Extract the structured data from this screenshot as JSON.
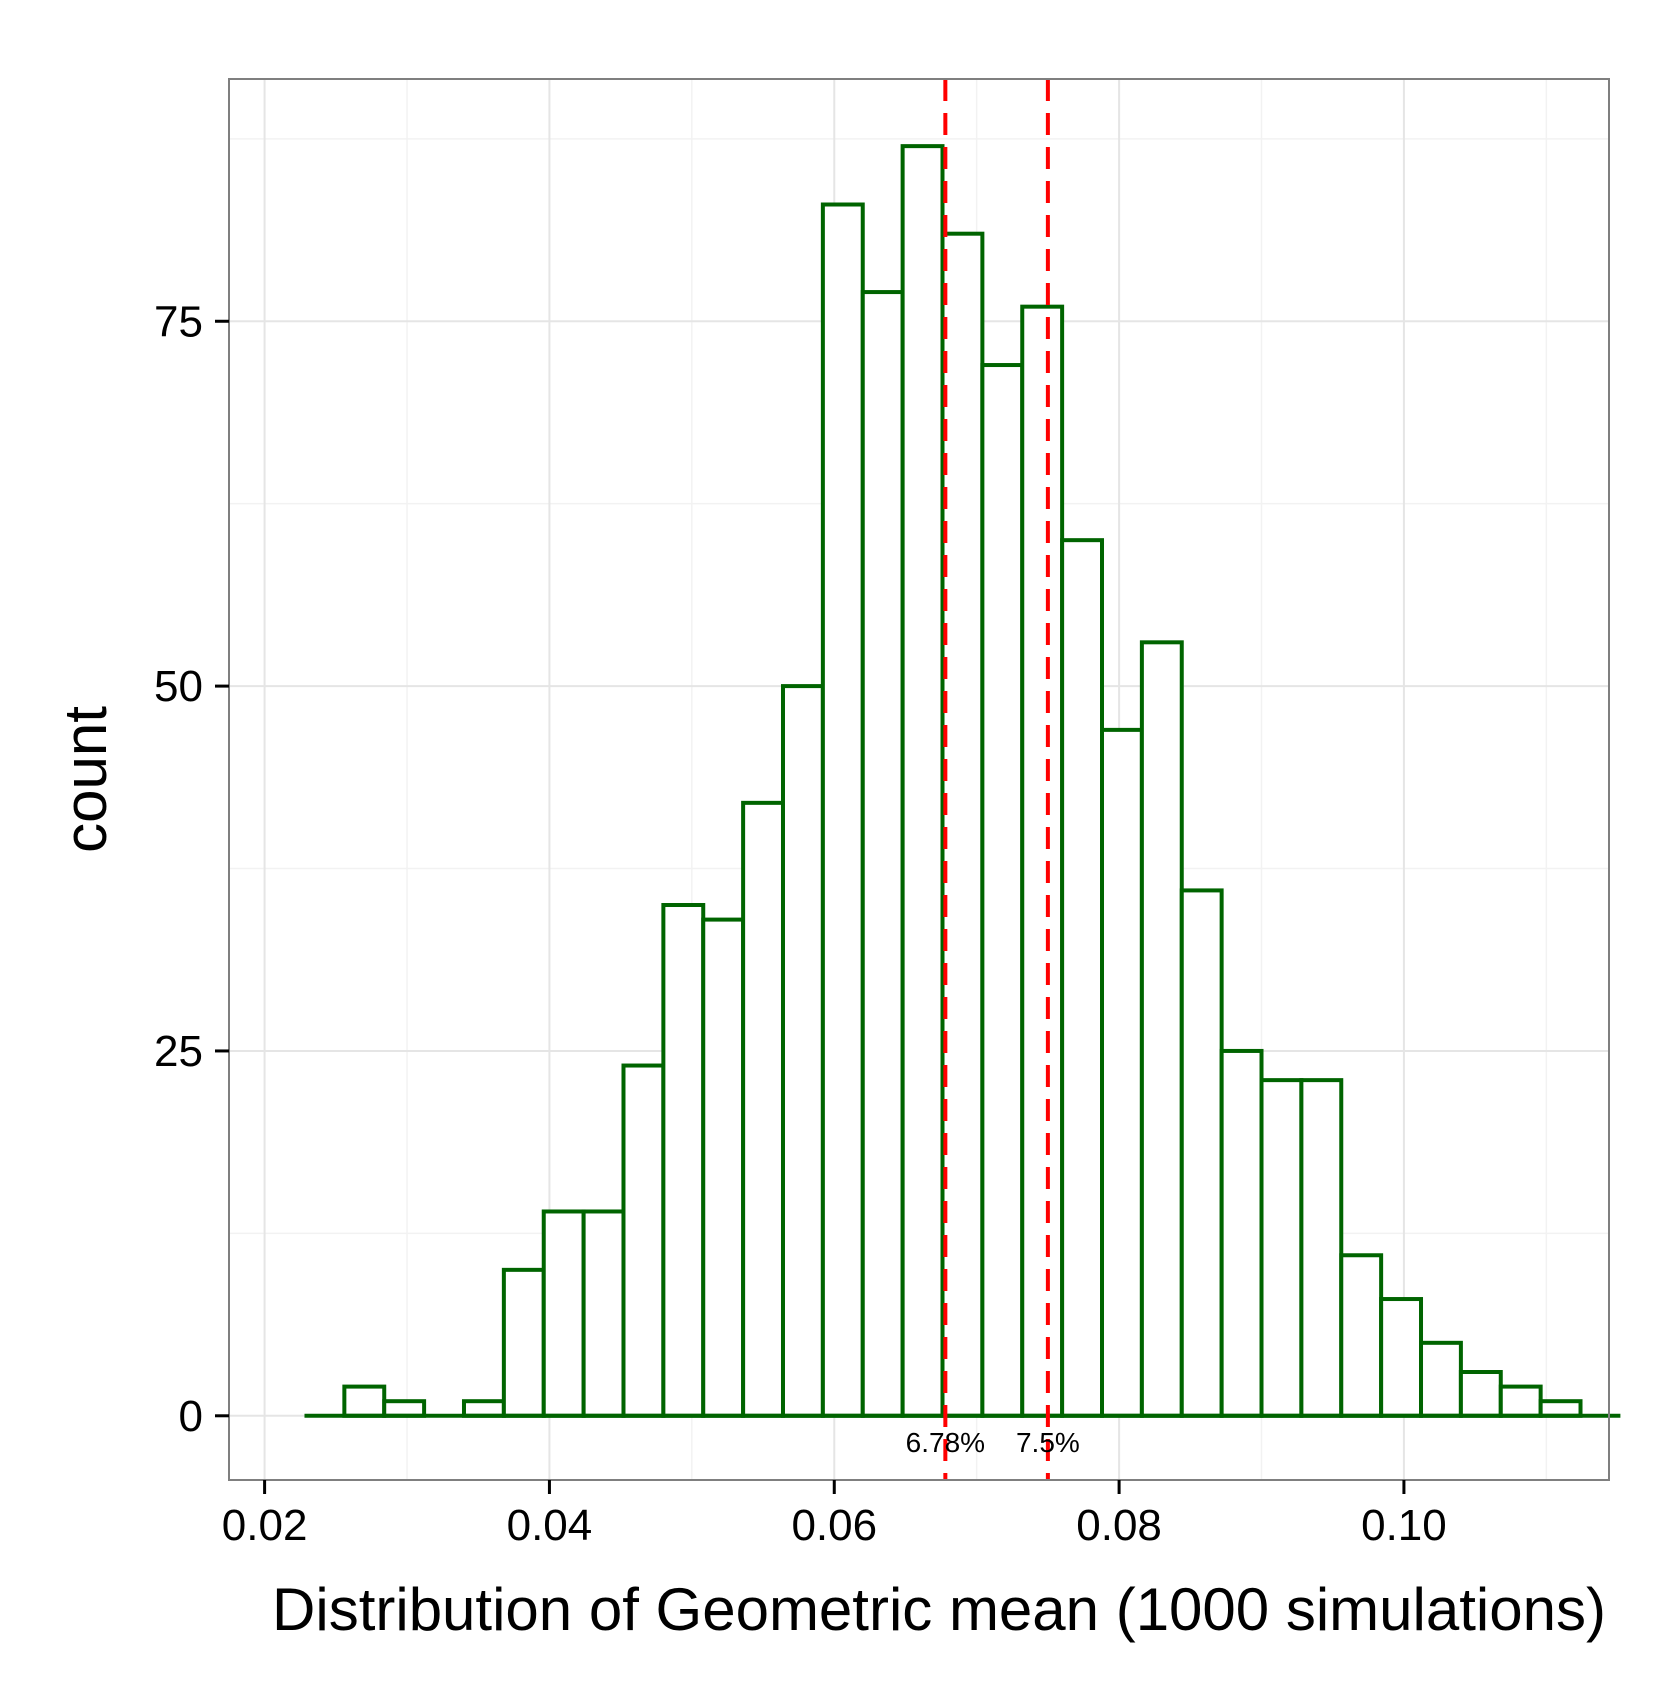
{
  "chart_data": {
    "type": "bar",
    "subtype": "histogram",
    "xlabel": "Distribution of Geometric mean (1000 simulations)",
    "ylabel": "count",
    "xlim": [
      0.0175,
      0.1144
    ],
    "ylim": [
      -4.4,
      91.6
    ],
    "x_ticks": [
      0.02,
      0.04,
      0.06,
      0.08,
      0.1
    ],
    "x_tick_labels": [
      "0.02",
      "0.04",
      "0.06",
      "0.08",
      "0.10"
    ],
    "y_ticks": [
      0,
      25,
      50,
      75
    ],
    "y_tick_labels": [
      "0",
      "25",
      "50",
      "75"
    ],
    "grid": true,
    "bin_start": 0.0228,
    "bin_width": 0.0028,
    "counts": [
      0,
      2,
      1,
      0,
      1,
      10,
      14,
      14,
      24,
      35,
      34,
      42,
      50,
      83,
      77,
      87,
      81,
      72,
      76,
      60,
      47,
      53,
      36,
      25,
      23,
      23,
      11,
      8,
      5,
      3,
      2,
      1,
      0
    ],
    "colors": {
      "bar_outline": "#006400",
      "bar_fill": "#ffffff",
      "reference_line": "#ff0000",
      "grid_major": "#e5e5e5",
      "grid_minor": "#f2f2f2",
      "panel_border": "#7f7f7f",
      "text": "#000000"
    },
    "reference_lines": [
      {
        "x": 0.0678,
        "label": "6.78%"
      },
      {
        "x": 0.075,
        "label": "7.5%"
      }
    ]
  }
}
